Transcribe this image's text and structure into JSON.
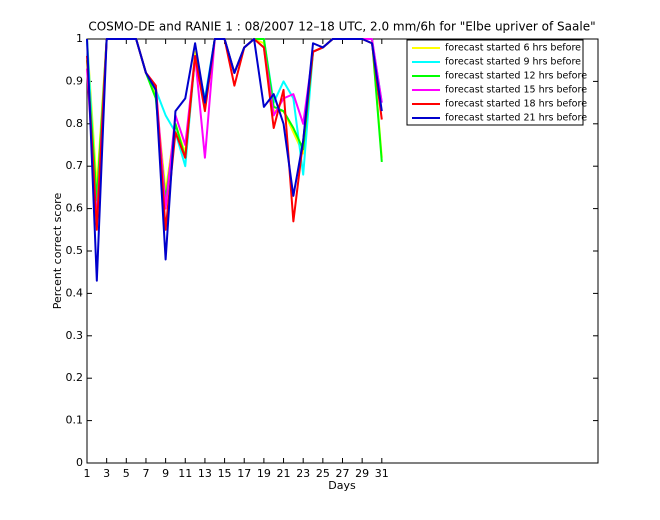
{
  "chart_data": {
    "type": "line",
    "title": "COSMO-DE and RANIE 1 : 08/2007 12–18 UTC, 2.0 mm/6h for \"Elbe upriver of Saale\"",
    "xlabel": "Days",
    "ylabel": "Percent correct score",
    "x": [
      1,
      2,
      3,
      4,
      5,
      6,
      7,
      8,
      9,
      10,
      11,
      12,
      13,
      14,
      15,
      16,
      17,
      18,
      19,
      20,
      21,
      22,
      23,
      24,
      25,
      26,
      27,
      28,
      29,
      30,
      31
    ],
    "xlim": [
      1,
      53
    ],
    "xticks": [
      1,
      3,
      5,
      7,
      9,
      11,
      13,
      15,
      17,
      19,
      21,
      23,
      25,
      27,
      29,
      31
    ],
    "ylim": [
      0,
      1
    ],
    "yticks": [
      0,
      0.1,
      0.2,
      0.3,
      0.4,
      0.5,
      0.6,
      0.7,
      0.8,
      0.9,
      1
    ],
    "legend": "upper right",
    "series": [
      {
        "name": "forecast started 6 hrs before",
        "color": "#ffff00",
        "values": [
          1,
          0.65,
          1,
          1,
          1,
          1,
          0.92,
          0.87,
          0.64,
          0.8,
          0.73,
          0.97,
          0.84,
          1,
          1,
          0.92,
          0.98,
          1,
          0.99,
          0.83,
          0.83,
          0.78,
          0.73,
          0.97,
          0.98,
          1,
          1,
          1,
          1,
          1,
          0.72
        ]
      },
      {
        "name": "forecast started 9 hrs before",
        "color": "#00ffff",
        "values": [
          1,
          0.6,
          1,
          1,
          1,
          1,
          0.92,
          0.88,
          0.82,
          0.78,
          0.7,
          0.96,
          0.86,
          1,
          1,
          0.92,
          0.98,
          1,
          1,
          0.85,
          0.9,
          0.86,
          0.68,
          0.97,
          0.98,
          1,
          1,
          1,
          1,
          1,
          0.85
        ]
      },
      {
        "name": "forecast started 12 hrs before",
        "color": "#00ff00",
        "values": [
          0.95,
          0.62,
          1,
          1,
          1,
          1,
          0.92,
          0.86,
          0.62,
          0.8,
          0.72,
          0.96,
          0.84,
          1,
          1,
          0.92,
          0.98,
          1,
          1,
          0.84,
          0.83,
          0.79,
          0.74,
          0.97,
          0.98,
          1,
          1,
          1,
          1,
          1,
          0.71
        ]
      },
      {
        "name": "forecast started 15 hrs before",
        "color": "#ff00ff",
        "values": [
          0.93,
          0.57,
          1,
          1,
          1,
          1,
          0.92,
          0.89,
          0.6,
          0.82,
          0.75,
          0.96,
          0.72,
          1,
          1,
          0.92,
          0.98,
          1,
          0.98,
          0.82,
          0.86,
          0.87,
          0.8,
          0.97,
          0.98,
          1,
          1,
          1,
          1,
          1,
          0.85
        ]
      },
      {
        "name": "forecast started 18 hrs before",
        "color": "#ff0000",
        "values": [
          0.96,
          0.55,
          1,
          1,
          1,
          1,
          0.92,
          0.89,
          0.55,
          0.78,
          0.72,
          0.96,
          0.83,
          1,
          1,
          0.89,
          0.98,
          1,
          0.98,
          0.79,
          0.88,
          0.57,
          0.76,
          0.97,
          0.98,
          1,
          1,
          1,
          1,
          0.99,
          0.81
        ]
      },
      {
        "name": "forecast started 21 hrs before",
        "color": "#0000cc",
        "values": [
          1,
          0.43,
          1,
          1,
          1,
          1,
          0.92,
          0.88,
          0.48,
          0.83,
          0.86,
          0.99,
          0.85,
          1,
          1,
          0.92,
          0.98,
          1,
          0.84,
          0.87,
          0.8,
          0.63,
          0.76,
          0.99,
          0.98,
          1,
          1,
          1,
          1,
          0.99,
          0.83
        ]
      }
    ]
  }
}
